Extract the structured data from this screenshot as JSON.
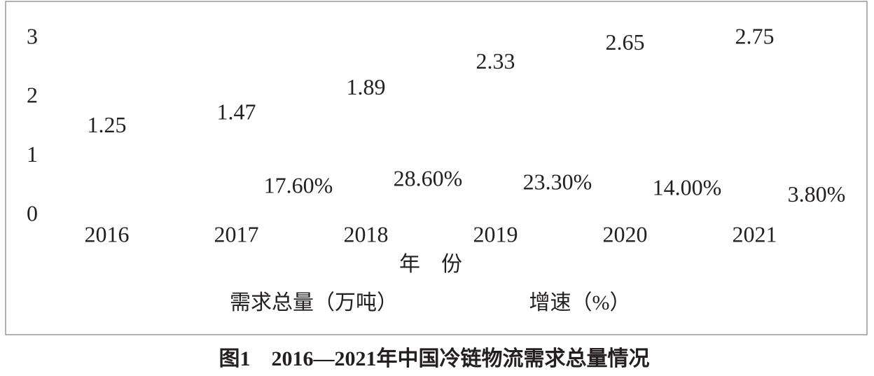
{
  "chart_data": {
    "type": "label-chart",
    "title": "图1　2016—2021年中国冷链物流需求总量情况",
    "x_label": "年　份",
    "categories": [
      "2016",
      "2017",
      "2018",
      "2019",
      "2020",
      "2021"
    ],
    "ylim": [
      0,
      3
    ],
    "yticks": [
      0,
      1,
      2,
      3
    ],
    "series": [
      {
        "name": "需求总量（万吨）",
        "values": [
          1.25,
          1.47,
          1.89,
          2.33,
          2.65,
          2.75
        ]
      },
      {
        "name": "增速（%）",
        "axis": "y2",
        "values": [
          null,
          17.6,
          28.6,
          23.3,
          14.0,
          3.8
        ],
        "value_labels": [
          null,
          "17.60%",
          "28.60%",
          "23.30%",
          "14.00%",
          "3.80%"
        ]
      }
    ]
  }
}
